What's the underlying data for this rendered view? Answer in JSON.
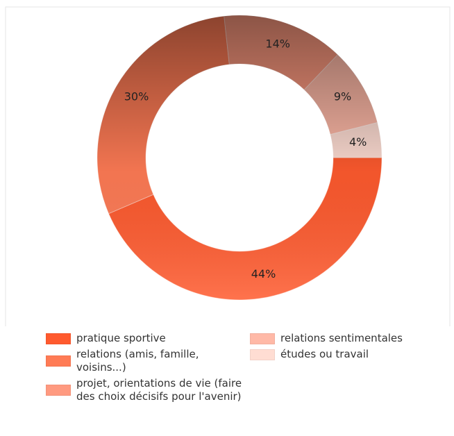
{
  "chart_data": {
    "type": "pie",
    "categories": [
      "pratique sportive",
      "relations (amis, famille, voisins...)",
      "projet, orientations de vie (faire des choix décisifs pour l'avenir)",
      "relations sentimentales",
      "études ou travail"
    ],
    "values": [
      44,
      30,
      14,
      9,
      4
    ],
    "value_labels": [
      "44%",
      "30%",
      "14%",
      "9%",
      "4%"
    ],
    "colors": [
      "#ff5a2e",
      "#ff7b55",
      "#ff9a80",
      "#ffb9a7",
      "#ffddd3"
    ]
  }
}
